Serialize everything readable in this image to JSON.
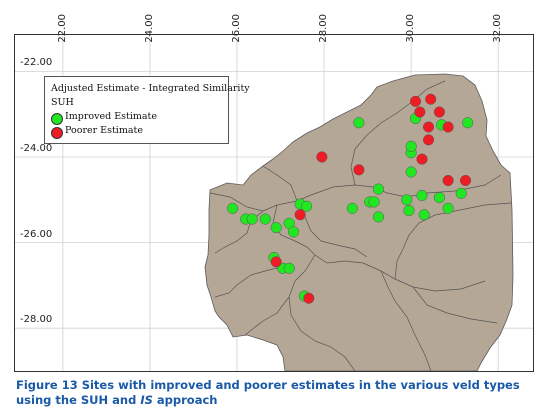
{
  "map": {
    "longitude_labels": [
      "22.00",
      "24.00",
      "26.00",
      "28.00",
      "30.00",
      "32.00"
    ],
    "latitude_labels": [
      "-22.00",
      "-24.00",
      "-26.00",
      "-28.00"
    ],
    "colors": {
      "land": "#b5a795",
      "grid": "#d0d0d0",
      "border": "#444444",
      "improved": "#22e622",
      "poorer": "#ee1c24"
    }
  },
  "legend": {
    "title": "Adjusted Estimate - Integrated Similarity",
    "subtitle": "SUH",
    "improved_label": "Improved Estimate",
    "poorer_label": "Poorer Estimate"
  },
  "caption": {
    "figure_label": "Figure 13",
    "text_part1": " Sites with improved and poorer estimates in the various veld types using the SUH and ",
    "text_italic": "IS",
    "text_part2": " approach"
  },
  "chart_data": {
    "type": "scatter",
    "x_label": "",
    "y_label": "",
    "xlim": [
      20.9,
      32.8
    ],
    "ylim": [
      -29.0,
      -21.15
    ],
    "series": [
      {
        "name": "Improved Estimate",
        "color": "#22e622",
        "points": [
          [
            28.8,
            -23.2
          ],
          [
            30.1,
            -23.1
          ],
          [
            30.7,
            -23.25
          ],
          [
            31.3,
            -23.2
          ],
          [
            30.0,
            -23.9
          ],
          [
            30.0,
            -24.35
          ],
          [
            30.0,
            -23.75
          ],
          [
            29.25,
            -24.75
          ],
          [
            29.05,
            -25.05
          ],
          [
            29.15,
            -25.05
          ],
          [
            28.65,
            -25.2
          ],
          [
            29.25,
            -25.4
          ],
          [
            29.9,
            -25.0
          ],
          [
            30.25,
            -24.9
          ],
          [
            30.65,
            -24.95
          ],
          [
            31.15,
            -24.85
          ],
          [
            30.3,
            -25.35
          ],
          [
            30.85,
            -25.2
          ],
          [
            29.95,
            -25.25
          ],
          [
            27.45,
            -25.1
          ],
          [
            27.6,
            -25.15
          ],
          [
            27.2,
            -25.55
          ],
          [
            27.3,
            -25.75
          ],
          [
            25.9,
            -25.2
          ],
          [
            26.2,
            -25.45
          ],
          [
            26.35,
            -25.45
          ],
          [
            26.65,
            -25.45
          ],
          [
            26.9,
            -25.65
          ],
          [
            26.85,
            -26.35
          ],
          [
            27.05,
            -26.6
          ],
          [
            27.2,
            -26.6
          ],
          [
            27.55,
            -27.25
          ]
        ]
      },
      {
        "name": "Poorer Estimate",
        "color": "#ee1c24",
        "points": [
          [
            30.1,
            -22.7
          ],
          [
            30.45,
            -22.65
          ],
          [
            30.2,
            -22.95
          ],
          [
            30.65,
            -22.95
          ],
          [
            30.4,
            -23.3
          ],
          [
            30.85,
            -23.3
          ],
          [
            30.4,
            -23.6
          ],
          [
            30.25,
            -24.05
          ],
          [
            28.8,
            -24.3
          ],
          [
            27.95,
            -24.0
          ],
          [
            30.85,
            -24.55
          ],
          [
            31.25,
            -24.55
          ],
          [
            27.45,
            -25.35
          ],
          [
            26.9,
            -26.45
          ],
          [
            27.65,
            -27.3
          ]
        ]
      }
    ]
  }
}
